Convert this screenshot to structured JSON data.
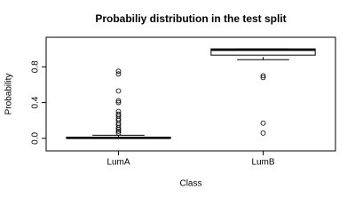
{
  "chart_data": {
    "type": "boxplot",
    "title": "Probabiliy distribution in the test split",
    "x_label": "Class",
    "y_label": "Probability",
    "categories": [
      "LumA",
      "LumB"
    ],
    "boxes": [
      {
        "min": 0.0,
        "q1": 0.0,
        "median": 0.005,
        "q3": 0.012,
        "max": 0.035,
        "outliers": [
          0.75,
          0.72,
          0.53,
          0.42,
          0.4,
          0.3,
          0.27,
          0.25,
          0.22,
          0.2,
          0.17,
          0.15,
          0.12,
          0.1,
          0.08,
          0.06
        ]
      },
      {
        "min": 0.88,
        "q1": 0.93,
        "median": 0.99,
        "q3": 1.0,
        "max": 1.0,
        "outliers": [
          0.7,
          0.68,
          0.17,
          0.06
        ]
      }
    ],
    "color": "#000000",
    "ylim": [
      -0.14,
      1.13
    ],
    "yticks": [
      {
        "value": 0,
        "label": "0.0"
      },
      {
        "value": 0.4,
        "label": "0.4"
      },
      {
        "value": 0.8,
        "label": "0.8"
      }
    ]
  }
}
